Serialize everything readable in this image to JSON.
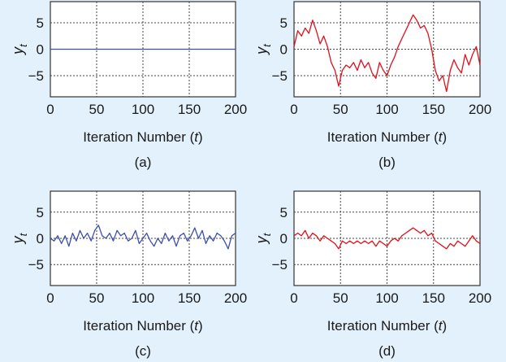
{
  "chart_data": [
    {
      "panel": "(a)",
      "type": "line",
      "xlabel": "Iteration Number (t)",
      "ylabel": "y_t",
      "xlim": [
        0,
        200
      ],
      "ylim": [
        -9,
        9
      ],
      "xticks": [
        0,
        50,
        100,
        150,
        200
      ],
      "yticks": [
        5,
        0,
        -5
      ],
      "grid": true,
      "color": "#3a4fb0",
      "series": [
        {
          "x": [
            0,
            200
          ],
          "values": [
            0,
            0
          ]
        }
      ]
    },
    {
      "panel": "(b)",
      "type": "line",
      "xlabel": "Iteration Number (t)",
      "ylabel": "y_t",
      "xlim": [
        0,
        200
      ],
      "ylim": [
        -9,
        9
      ],
      "xticks": [
        0,
        50,
        100,
        150,
        200
      ],
      "yticks": [
        5,
        0,
        -5
      ],
      "grid": true,
      "color": "#e0101a",
      "series": [
        {
          "x": [
            0,
            4,
            8,
            12,
            16,
            20,
            24,
            28,
            32,
            36,
            40,
            44,
            48,
            52,
            56,
            60,
            64,
            68,
            72,
            76,
            80,
            84,
            88,
            92,
            96,
            100,
            104,
            108,
            112,
            116,
            120,
            124,
            128,
            132,
            136,
            140,
            144,
            148,
            152,
            156,
            160,
            164,
            168,
            172,
            176,
            180,
            184,
            188,
            192,
            196,
            200
          ],
          "values": [
            0.5,
            3.5,
            2.5,
            4,
            3,
            5.5,
            3.5,
            1,
            2.5,
            0.5,
            -2.5,
            -4,
            -7,
            -4,
            -3,
            -3.5,
            -2.5,
            -4,
            -2,
            -3.5,
            -2.5,
            -4.5,
            -5.5,
            -2.5,
            -4,
            -5,
            -3,
            -1.5,
            0.5,
            2,
            3.5,
            5,
            6.5,
            5.5,
            4,
            4.5,
            3,
            0,
            -4,
            -6,
            -5,
            -8,
            -4,
            -2,
            -3.5,
            -4.5,
            -1,
            -3,
            -1,
            0.5,
            -3
          ]
        }
      ]
    },
    {
      "panel": "(c)",
      "type": "line",
      "xlabel": "Iteration Number (t)",
      "ylabel": "y_t",
      "xlim": [
        0,
        200
      ],
      "ylim": [
        -9,
        9
      ],
      "xticks": [
        0,
        50,
        100,
        150,
        200
      ],
      "yticks": [
        5,
        0,
        -5
      ],
      "grid": true,
      "color": "#3a4fb0",
      "series": [
        {
          "x": [
            0,
            4,
            8,
            12,
            16,
            20,
            24,
            28,
            32,
            36,
            40,
            44,
            48,
            52,
            56,
            60,
            64,
            68,
            72,
            76,
            80,
            84,
            88,
            92,
            96,
            100,
            104,
            108,
            112,
            116,
            120,
            124,
            128,
            132,
            136,
            140,
            144,
            148,
            152,
            156,
            160,
            164,
            168,
            172,
            176,
            180,
            184,
            188,
            192,
            196,
            200
          ],
          "values": [
            0,
            -0.5,
            0.5,
            -1,
            0.5,
            -1.5,
            1,
            -0.5,
            1.5,
            0,
            1,
            -0.5,
            1.5,
            2.5,
            0.5,
            0,
            1,
            -0.5,
            1.5,
            0.5,
            1,
            -0.5,
            0,
            1.5,
            -1,
            0,
            1,
            -0.5,
            -1.5,
            0,
            -1,
            1,
            -0.5,
            0.5,
            -1.5,
            0.5,
            1,
            -0.5,
            0.5,
            2,
            0,
            1.5,
            -1,
            0.5,
            -0.5,
            1,
            0.5,
            -0.5,
            -2,
            0.5,
            1
          ]
        }
      ]
    },
    {
      "panel": "(d)",
      "type": "line",
      "xlabel": "Iteration Number (t)",
      "ylabel": "y_t",
      "xlim": [
        0,
        200
      ],
      "ylim": [
        -9,
        9
      ],
      "xticks": [
        0,
        50,
        100,
        150,
        200
      ],
      "yticks": [
        5,
        0,
        -5
      ],
      "grid": true,
      "color": "#e0101a",
      "series": [
        {
          "x": [
            0,
            4,
            8,
            12,
            16,
            20,
            24,
            28,
            32,
            36,
            40,
            44,
            48,
            52,
            56,
            60,
            64,
            68,
            72,
            76,
            80,
            84,
            88,
            92,
            96,
            100,
            104,
            108,
            112,
            116,
            120,
            124,
            128,
            132,
            136,
            140,
            144,
            148,
            152,
            156,
            160,
            164,
            168,
            172,
            176,
            180,
            184,
            188,
            192,
            196,
            200
          ],
          "values": [
            0.5,
            1,
            0.5,
            1.5,
            0,
            1,
            0.5,
            -0.5,
            0.5,
            0,
            -0.5,
            -1,
            -2,
            -0.5,
            -1,
            -0.5,
            -1,
            -0.5,
            -1,
            -0.5,
            -1,
            -0.5,
            -1.5,
            -0.5,
            -1,
            -1.5,
            -0.5,
            0,
            -0.5,
            0.5,
            1,
            1.5,
            2,
            1.5,
            1,
            1.5,
            0.5,
            1,
            -0.5,
            -1,
            -1.5,
            -2,
            -1,
            -1.5,
            -0.5,
            -1,
            -1.5,
            -0.5,
            0.5,
            -0.5,
            -1
          ]
        }
      ]
    }
  ]
}
